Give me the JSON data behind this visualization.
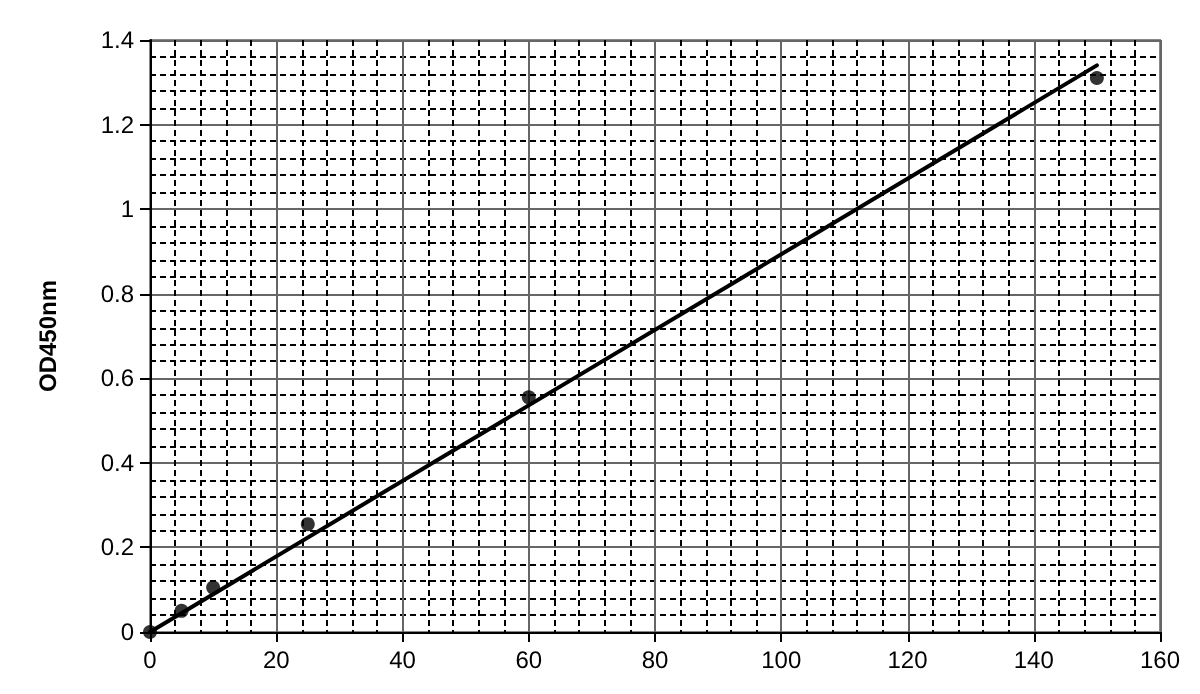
{
  "chart_data": {
    "type": "scatter",
    "ylabel": "OD450nm",
    "marker": "circle",
    "grid": true,
    "series": [
      {
        "color": "#000000",
        "x": [
          0,
          5,
          10,
          25,
          60,
          150
        ],
        "values": [
          0,
          0.05,
          0.105,
          0.255,
          0.555,
          1.31
        ]
      },
      {
        "type": "line",
        "color": "#000000",
        "x": [
          0,
          150
        ],
        "values": [
          0,
          1.34
        ],
        "marker": "none",
        "line_style": "solid"
      }
    ],
    "xlim": [
      0,
      160
    ],
    "xticks": [
      0,
      20,
      40,
      60,
      80,
      100,
      120,
      140,
      160
    ],
    "ylim": [
      0,
      1.4
    ],
    "yticks": [
      0,
      0.2,
      0.4,
      0.6,
      0.8,
      1,
      1.2,
      1.4
    ]
  }
}
